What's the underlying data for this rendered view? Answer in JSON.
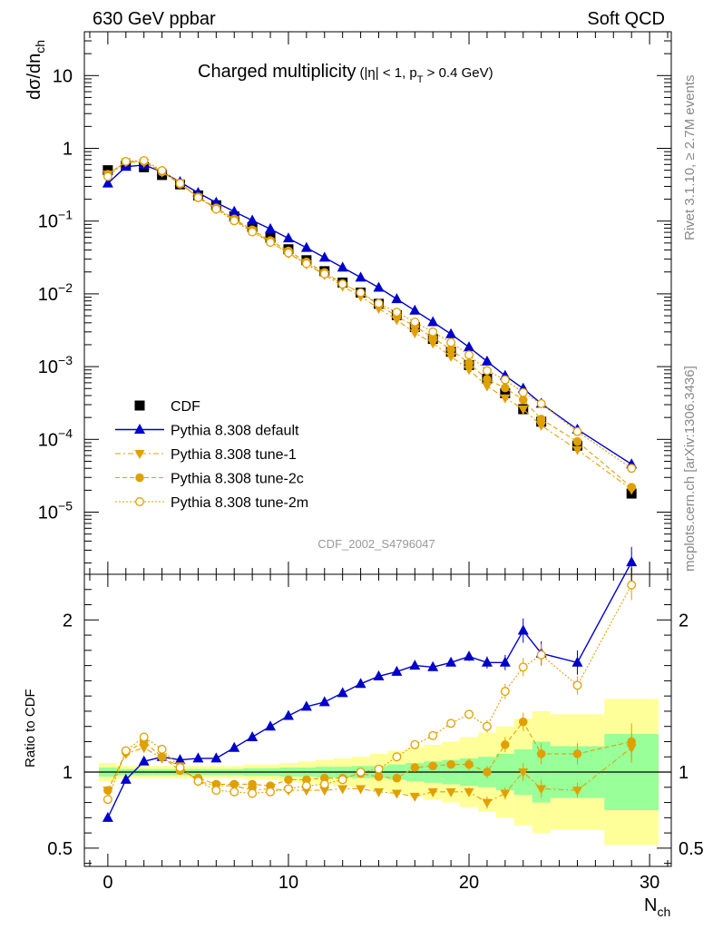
{
  "header": {
    "left": "630 GeV ppbar",
    "right": "Soft QCD"
  },
  "side_labels": {
    "rivet": "Rivet 3.1.10, ≥ 2.7M events",
    "mcplots": "mcplots.cern.ch [arXiv:1306.3436]"
  },
  "titles": {
    "main": "Charged multiplicity",
    "cut_a": "(|η| < 1, p",
    "cut_sub": "T",
    "cut_b": " > 0.4 GeV)",
    "analysis": "CDF_2002_S4796047",
    "ylabel_top": "dσ/dn",
    "ylabel_top_sub": "ch",
    "ylabel_ratio": "Ratio to CDF",
    "xlabel": "N",
    "xlabel_sub": "ch"
  },
  "colors": {
    "cdf": "#000000",
    "default": "#0000cc",
    "tune": "#e0a000",
    "band_inner": "#99ff99",
    "band_outer": "#ffff99"
  },
  "chart_data": [
    {
      "type": "scatter",
      "name": "main",
      "log_y": true,
      "xlim": [
        -1.3,
        31.2
      ],
      "ylim": [
        1.4e-06,
        40
      ],
      "x_ticks": [
        0,
        10,
        20,
        30
      ],
      "y_tick_labels": [
        "10⁻⁵",
        "10⁻⁴",
        "10⁻³",
        "10⁻²",
        "10⁻¹",
        "1",
        "10"
      ],
      "legend_position": "bottom-left",
      "x": [
        0,
        1,
        2,
        3,
        4,
        5,
        6,
        7,
        8,
        9,
        10,
        11,
        12,
        13,
        14,
        15,
        16,
        17,
        18,
        19,
        20,
        21,
        22,
        23,
        24,
        26,
        29
      ],
      "series": [
        {
          "name": "CDF",
          "style": "square",
          "values": [
            0.5,
            0.58,
            0.55,
            0.43,
            0.32,
            0.225,
            0.165,
            0.116,
            0.083,
            0.059,
            0.041,
            0.029,
            0.0205,
            0.0143,
            0.0104,
            0.0073,
            0.0051,
            0.0035,
            0.0024,
            0.0016,
            0.00105,
            0.00068,
            0.00043,
            0.00026,
            0.000175,
            8.2e-05,
            1.8e-05
          ]
        },
        {
          "name": "Pythia 8.308 default",
          "style": "triangle-up",
          "line": "solid",
          "values": [
            0.33,
            0.56,
            0.59,
            0.475,
            0.345,
            0.245,
            0.18,
            0.135,
            0.102,
            0.078,
            0.058,
            0.043,
            0.0315,
            0.023,
            0.0168,
            0.0122,
            0.0085,
            0.0059,
            0.0041,
            0.0028,
            0.00185,
            0.00118,
            0.00075,
            0.0005,
            0.00031,
            0.000137,
            4.55e-05
          ]
        },
        {
          "name": "Pythia 8.308 tune-1",
          "style": "triangle-down",
          "line": "dashdot",
          "values": [
            0.44,
            0.65,
            0.64,
            0.47,
            0.335,
            0.212,
            0.148,
            0.104,
            0.073,
            0.052,
            0.036,
            0.0255,
            0.0182,
            0.0127,
            0.0092,
            0.0063,
            0.0044,
            0.0029,
            0.0021,
            0.00138,
            0.00091,
            0.00054,
            0.00037,
            0.00026,
            0.000155,
            7.2e-05,
            2.05e-05
          ]
        },
        {
          "name": "Pythia 8.308 tune-2c",
          "style": "circle",
          "line": "dashed",
          "values": [
            0.44,
            0.66,
            0.66,
            0.475,
            0.322,
            0.215,
            0.152,
            0.107,
            0.076,
            0.054,
            0.039,
            0.0275,
            0.0197,
            0.0138,
            0.0103,
            0.0071,
            0.0049,
            0.0036,
            0.0025,
            0.00171,
            0.00112,
            0.00067,
            0.00051,
            0.00035,
            0.00019,
            9.35e-05,
            2.2e-05
          ]
        },
        {
          "name": "Pythia 8.308 tune-2m",
          "style": "open-circle",
          "line": "dotted",
          "values": [
            0.41,
            0.66,
            0.68,
            0.495,
            0.33,
            0.21,
            0.146,
            0.101,
            0.071,
            0.051,
            0.0365,
            0.026,
            0.0188,
            0.0136,
            0.0104,
            0.0074,
            0.0056,
            0.0041,
            0.003,
            0.00215,
            0.00145,
            0.00088,
            0.00066,
            0.00044,
            0.00031,
            0.000128,
            4e-05
          ]
        }
      ]
    },
    {
      "type": "scatter",
      "name": "ratio",
      "ylabel": "Ratio to CDF",
      "xlabel": "Nch",
      "xlim": [
        -1.3,
        31.2
      ],
      "ylim": [
        0.38,
        2.3
      ],
      "x_ticks": [
        0,
        10,
        20,
        30
      ],
      "y_ticks": [
        0.5,
        1,
        2
      ],
      "y_tick_labels": [
        "0.5",
        "1",
        "2"
      ],
      "x": [
        0,
        1,
        2,
        3,
        4,
        5,
        6,
        7,
        8,
        9,
        10,
        11,
        12,
        13,
        14,
        15,
        16,
        17,
        18,
        19,
        20,
        21,
        22,
        23,
        24,
        26,
        29
      ],
      "band_edges": [
        -0.5,
        0.5,
        1.5,
        2.5,
        3.5,
        4.5,
        5.5,
        6.5,
        7.5,
        8.5,
        9.5,
        10.5,
        11.5,
        12.5,
        13.5,
        14.5,
        15.5,
        16.5,
        17.5,
        18.5,
        19.5,
        20.5,
        21.5,
        22.5,
        23.5,
        24.5,
        27.5,
        30.5
      ],
      "band_inner": [
        0.03,
        0.02,
        0.02,
        0.02,
        0.02,
        0.02,
        0.02,
        0.02,
        0.025,
        0.025,
        0.03,
        0.03,
        0.035,
        0.035,
        0.04,
        0.04,
        0.05,
        0.06,
        0.07,
        0.08,
        0.09,
        0.1,
        0.12,
        0.15,
        0.2,
        0.17,
        0.25
      ],
      "band_outer": [
        0.06,
        0.04,
        0.04,
        0.04,
        0.04,
        0.04,
        0.04,
        0.04,
        0.05,
        0.05,
        0.06,
        0.07,
        0.08,
        0.09,
        0.1,
        0.12,
        0.14,
        0.16,
        0.18,
        0.2,
        0.23,
        0.26,
        0.3,
        0.35,
        0.4,
        0.38,
        0.48
      ],
      "series": [
        {
          "name": "Pythia 8.308 default",
          "values": [
            0.7,
            0.95,
            1.07,
            1.1,
            1.08,
            1.09,
            1.09,
            1.16,
            1.23,
            1.3,
            1.37,
            1.43,
            1.46,
            1.52,
            1.58,
            1.63,
            1.66,
            1.7,
            1.69,
            1.72,
            1.76,
            1.72,
            1.72,
            1.93,
            1.78,
            1.72,
            2.38
          ],
          "errors": [
            0,
            0,
            0,
            0,
            0,
            0,
            0,
            0,
            0,
            0,
            0,
            0,
            0,
            0,
            0,
            0,
            0,
            0,
            0,
            0,
            0.03,
            0.04,
            0.05,
            0.08,
            0.08,
            0.08,
            0.1
          ]
        },
        {
          "name": "Pythia 8.308 tune-1",
          "values": [
            0.88,
            1.12,
            1.16,
            1.09,
            1.04,
            0.94,
            0.91,
            0.91,
            0.88,
            0.89,
            0.88,
            0.88,
            0.88,
            0.89,
            0.89,
            0.87,
            0.86,
            0.84,
            0.87,
            0.87,
            0.87,
            0.8,
            0.86,
            1.0,
            0.89,
            0.88,
            1.16
          ],
          "errors": [
            0,
            0,
            0,
            0,
            0,
            0,
            0,
            0,
            0,
            0,
            0,
            0,
            0,
            0,
            0,
            0,
            0,
            0,
            0,
            0,
            0.03,
            0.04,
            0.04,
            0.06,
            0.06,
            0.05,
            0.1
          ]
        },
        {
          "name": "Pythia 8.308 tune-2c",
          "values": [
            0.88,
            1.13,
            1.2,
            1.1,
            1.01,
            0.96,
            0.92,
            0.92,
            0.92,
            0.91,
            0.95,
            0.95,
            0.96,
            0.96,
            0.99,
            0.97,
            0.96,
            1.03,
            1.04,
            1.05,
            1.05,
            1.0,
            1.18,
            1.33,
            1.12,
            1.12,
            1.2
          ],
          "errors": [
            0,
            0,
            0,
            0,
            0,
            0,
            0,
            0,
            0,
            0,
            0,
            0,
            0,
            0,
            0,
            0,
            0,
            0,
            0,
            0,
            0.04,
            0.04,
            0.05,
            0.06,
            0.07,
            0.07,
            0.12
          ]
        },
        {
          "name": "Pythia 8.308 tune-2m",
          "values": [
            0.82,
            1.14,
            1.23,
            1.15,
            1.03,
            0.94,
            0.88,
            0.87,
            0.86,
            0.87,
            0.89,
            0.91,
            0.92,
            0.95,
            1.0,
            1.02,
            1.1,
            1.18,
            1.24,
            1.32,
            1.38,
            1.3,
            1.53,
            1.69,
            1.77,
            1.57,
            2.23
          ],
          "errors": [
            0,
            0,
            0,
            0,
            0,
            0,
            0,
            0,
            0,
            0,
            0,
            0,
            0,
            0,
            0,
            0,
            0,
            0,
            0,
            0,
            0.03,
            0.04,
            0.05,
            0.06,
            0.07,
            0.06,
            0.1
          ]
        }
      ]
    }
  ]
}
